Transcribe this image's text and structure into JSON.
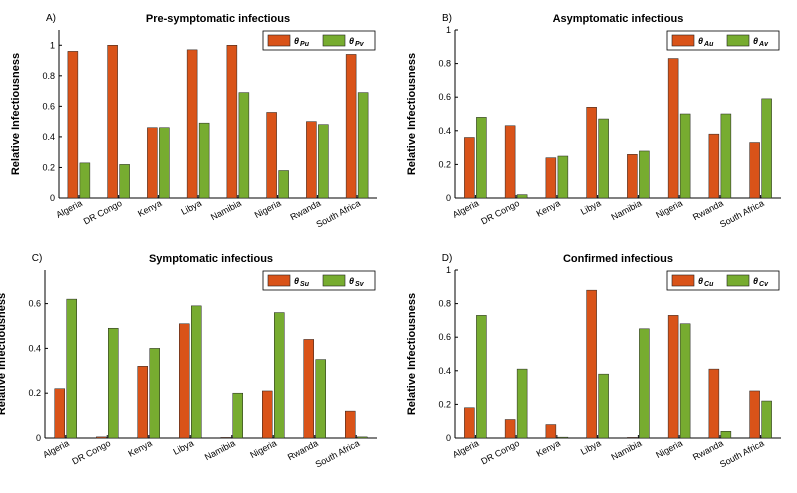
{
  "colors": {
    "u": "#d95319",
    "v": "#77ac30",
    "axis": "#000000",
    "bar_edge": "#222222"
  },
  "ylabel": "Relative Infectiousness",
  "categories": [
    "Algeria",
    "DR Congo",
    "Kenya",
    "Libya",
    "Namibia",
    "Nigeria",
    "Rwanda",
    "South Africa"
  ],
  "chart_data": [
    {
      "type": "bar",
      "panel": "A)",
      "title": "Pre-symptomatic infectious",
      "ylabel": "Relative Infectiousness",
      "categories": [
        "Algeria",
        "DR Congo",
        "Kenya",
        "Libya",
        "Namibia",
        "Nigeria",
        "Rwanda",
        "South Africa"
      ],
      "ylim": [
        0,
        1.1
      ],
      "yticks": [
        0,
        0.2,
        0.4,
        0.6,
        0.8,
        1
      ],
      "ytick_labels": [
        "0",
        "0.2",
        "0.4",
        "0.6",
        "0.8",
        "1"
      ],
      "legend_position": "top-right",
      "series": [
        {
          "name": "θPu",
          "symbol": "θ",
          "sub": "Pu",
          "values": [
            0.96,
            1.0,
            0.46,
            0.97,
            1.0,
            0.56,
            0.5,
            0.94
          ]
        },
        {
          "name": "θPv",
          "symbol": "θ",
          "sub": "Pv",
          "values": [
            0.23,
            0.22,
            0.46,
            0.49,
            0.69,
            0.18,
            0.48,
            0.69
          ]
        }
      ]
    },
    {
      "type": "bar",
      "panel": "B)",
      "title": "Asymptomatic infectious",
      "ylabel": "Relative Infectiousness",
      "categories": [
        "Algeria",
        "DR Congo",
        "Kenya",
        "Libya",
        "Namibia",
        "Nigeria",
        "Rwanda",
        "South Africa"
      ],
      "ylim": [
        0,
        1
      ],
      "yticks": [
        0,
        0.2,
        0.4,
        0.6,
        0.8,
        1
      ],
      "ytick_labels": [
        "0",
        "0.2",
        "0.4",
        "0.6",
        "0.8",
        "1"
      ],
      "legend_position": "top-right",
      "series": [
        {
          "name": "θAu",
          "symbol": "θ",
          "sub": "Au",
          "values": [
            0.36,
            0.43,
            0.24,
            0.54,
            0.26,
            0.83,
            0.38,
            0.33
          ]
        },
        {
          "name": "θAv",
          "symbol": "θ",
          "sub": "Av",
          "values": [
            0.48,
            0.02,
            0.25,
            0.47,
            0.28,
            0.5,
            0.5,
            0.59
          ]
        }
      ]
    },
    {
      "type": "bar",
      "panel": "C)",
      "title": "Symptomatic infectious",
      "ylabel": "Relative Infectiousness",
      "categories": [
        "Algeria",
        "DR Congo",
        "Kenya",
        "Libya",
        "Namibia",
        "Nigeria",
        "Rwanda",
        "South Africa"
      ],
      "ylim": [
        0,
        0.75
      ],
      "yticks": [
        0,
        0.2,
        0.4,
        0.6
      ],
      "ytick_labels": [
        "0",
        "0.2",
        "0.4",
        "0.6"
      ],
      "legend_position": "top-right",
      "series": [
        {
          "name": "θSu",
          "symbol": "θ",
          "sub": "Su",
          "values": [
            0.22,
            0.005,
            0.32,
            0.51,
            0.0,
            0.21,
            0.44,
            0.12
          ]
        },
        {
          "name": "θSv",
          "symbol": "θ",
          "sub": "Sv",
          "values": [
            0.62,
            0.49,
            0.4,
            0.59,
            0.2,
            0.56,
            0.35,
            0.005
          ]
        }
      ]
    },
    {
      "type": "bar",
      "panel": "D)",
      "title": "Confirmed infectious",
      "ylabel": "Relative Infectiousness",
      "categories": [
        "Algeria",
        "DR Congo",
        "Kenya",
        "Libya",
        "Namibia",
        "Nigeria",
        "Rwanda",
        "South Africa"
      ],
      "ylim": [
        0,
        1
      ],
      "yticks": [
        0,
        0.2,
        0.4,
        0.6,
        0.8,
        1
      ],
      "ytick_labels": [
        "0",
        "0.2",
        "0.4",
        "0.6",
        "0.8",
        "1"
      ],
      "legend_position": "top-right",
      "series": [
        {
          "name": "θCu",
          "symbol": "θ",
          "sub": "Cu",
          "values": [
            0.18,
            0.11,
            0.08,
            0.88,
            0.0,
            0.73,
            0.41,
            0.28
          ]
        },
        {
          "name": "θCv",
          "symbol": "θ",
          "sub": "Cv",
          "values": [
            0.73,
            0.41,
            0.005,
            0.38,
            0.65,
            0.68,
            0.04,
            0.22
          ]
        }
      ]
    }
  ]
}
